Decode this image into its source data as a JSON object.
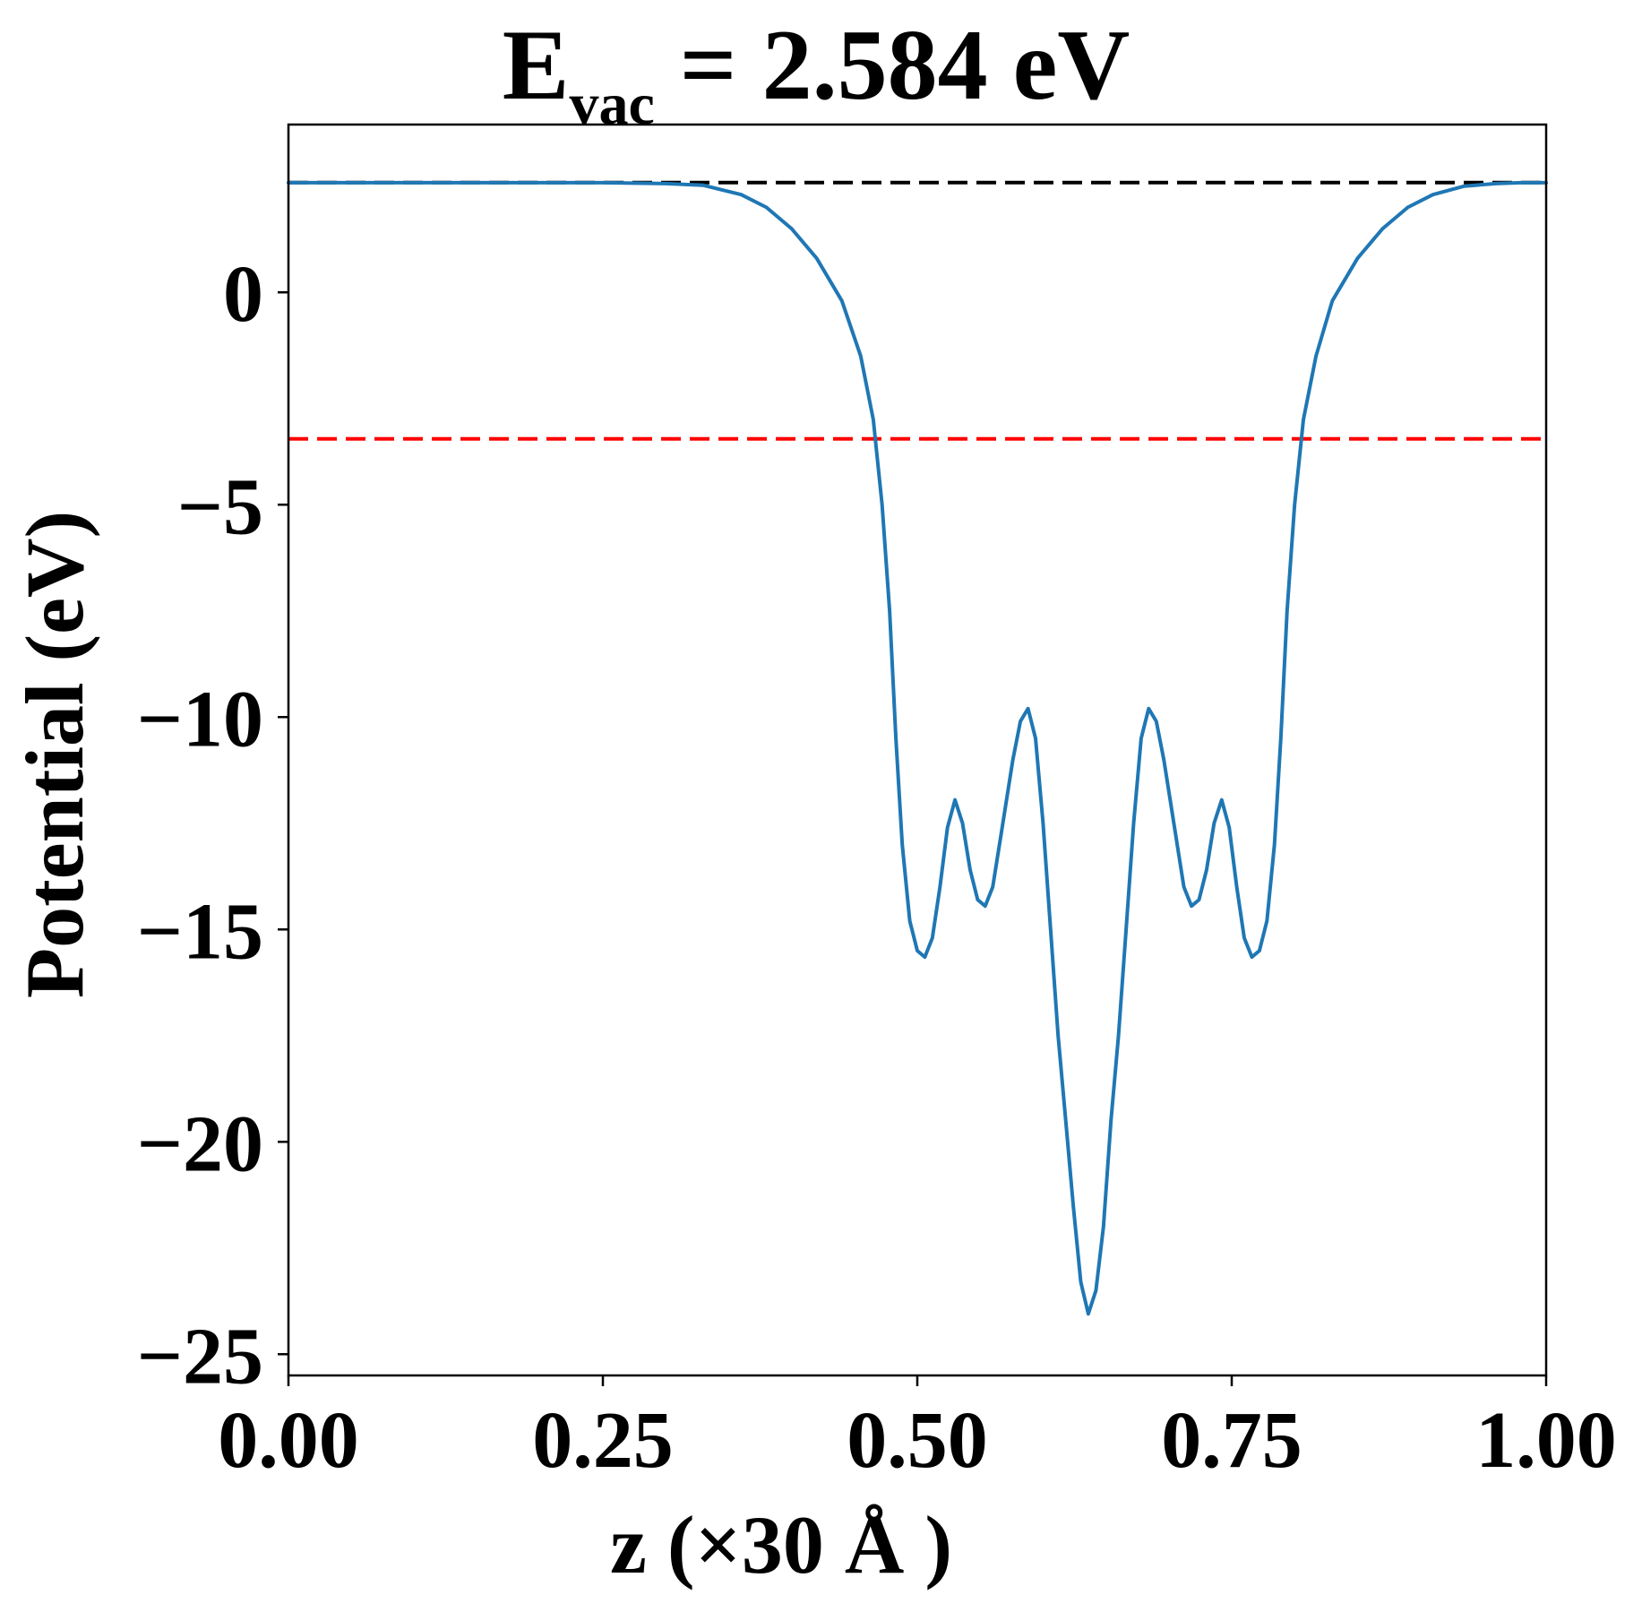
{
  "chart_data": {
    "type": "line",
    "title": {
      "main": "E",
      "subscript": "vac",
      "rest": " = 2.584 eV"
    },
    "xlabel": "z (×30 Å )",
    "ylabel": "Potential (eV)",
    "xlim": [
      0,
      1
    ],
    "ylim": [
      -25.5,
      3.95
    ],
    "x_ticks": [
      0,
      0.25,
      0.5,
      0.75,
      1
    ],
    "x_tick_labels": [
      "0.00",
      "0.25",
      "0.50",
      "0.75",
      "1.00"
    ],
    "y_ticks": [
      0,
      -5,
      -10,
      -15,
      -20,
      -25
    ],
    "y_tick_labels": [
      "0",
      "−5",
      "−10",
      "−15",
      "−20",
      "−25"
    ],
    "grid": false,
    "reference_lines": [
      {
        "y": 2.584,
        "color": "#000000",
        "style": "dashed"
      },
      {
        "y": -3.45,
        "color": "#ff0000",
        "style": "dashed"
      }
    ],
    "series": [
      {
        "color": "#1f77b4",
        "points": [
          [
            0.0,
            2.58
          ],
          [
            0.05,
            2.58
          ],
          [
            0.1,
            2.58
          ],
          [
            0.15,
            2.58
          ],
          [
            0.2,
            2.58
          ],
          [
            0.25,
            2.58
          ],
          [
            0.3,
            2.56
          ],
          [
            0.33,
            2.52
          ],
          [
            0.36,
            2.3
          ],
          [
            0.38,
            2.0
          ],
          [
            0.4,
            1.5
          ],
          [
            0.42,
            0.8
          ],
          [
            0.44,
            -0.2
          ],
          [
            0.455,
            -1.5
          ],
          [
            0.465,
            -3.0
          ],
          [
            0.472,
            -5.0
          ],
          [
            0.478,
            -7.5
          ],
          [
            0.483,
            -10.5
          ],
          [
            0.488,
            -13.0
          ],
          [
            0.494,
            -14.8
          ],
          [
            0.5,
            -15.5
          ],
          [
            0.506,
            -15.65
          ],
          [
            0.512,
            -15.2
          ],
          [
            0.518,
            -14.0
          ],
          [
            0.524,
            -12.6
          ],
          [
            0.53,
            -11.95
          ],
          [
            0.536,
            -12.5
          ],
          [
            0.542,
            -13.6
          ],
          [
            0.548,
            -14.3
          ],
          [
            0.554,
            -14.45
          ],
          [
            0.56,
            -14.0
          ],
          [
            0.568,
            -12.5
          ],
          [
            0.576,
            -11.0
          ],
          [
            0.582,
            -10.1
          ],
          [
            0.588,
            -9.8
          ],
          [
            0.594,
            -10.5
          ],
          [
            0.6,
            -12.5
          ],
          [
            0.606,
            -15.0
          ],
          [
            0.612,
            -17.5
          ],
          [
            0.618,
            -19.5
          ],
          [
            0.624,
            -21.5
          ],
          [
            0.63,
            -23.3
          ],
          [
            0.636,
            -24.05
          ],
          [
            0.642,
            -23.5
          ],
          [
            0.648,
            -22.0
          ],
          [
            0.654,
            -19.5
          ],
          [
            0.66,
            -17.5
          ],
          [
            0.666,
            -15.0
          ],
          [
            0.672,
            -12.5
          ],
          [
            0.678,
            -10.5
          ],
          [
            0.684,
            -9.8
          ],
          [
            0.69,
            -10.1
          ],
          [
            0.696,
            -11.0
          ],
          [
            0.704,
            -12.5
          ],
          [
            0.712,
            -14.0
          ],
          [
            0.718,
            -14.45
          ],
          [
            0.724,
            -14.3
          ],
          [
            0.73,
            -13.6
          ],
          [
            0.736,
            -12.5
          ],
          [
            0.742,
            -11.95
          ],
          [
            0.748,
            -12.6
          ],
          [
            0.754,
            -14.0
          ],
          [
            0.76,
            -15.2
          ],
          [
            0.766,
            -15.65
          ],
          [
            0.772,
            -15.5
          ],
          [
            0.778,
            -14.8
          ],
          [
            0.784,
            -13.0
          ],
          [
            0.789,
            -10.5
          ],
          [
            0.794,
            -7.5
          ],
          [
            0.8,
            -5.0
          ],
          [
            0.807,
            -3.0
          ],
          [
            0.817,
            -1.5
          ],
          [
            0.83,
            -0.2
          ],
          [
            0.85,
            0.8
          ],
          [
            0.87,
            1.5
          ],
          [
            0.89,
            2.0
          ],
          [
            0.91,
            2.3
          ],
          [
            0.935,
            2.5
          ],
          [
            0.96,
            2.56
          ],
          [
            0.98,
            2.58
          ],
          [
            1.0,
            2.58
          ]
        ]
      }
    ]
  }
}
